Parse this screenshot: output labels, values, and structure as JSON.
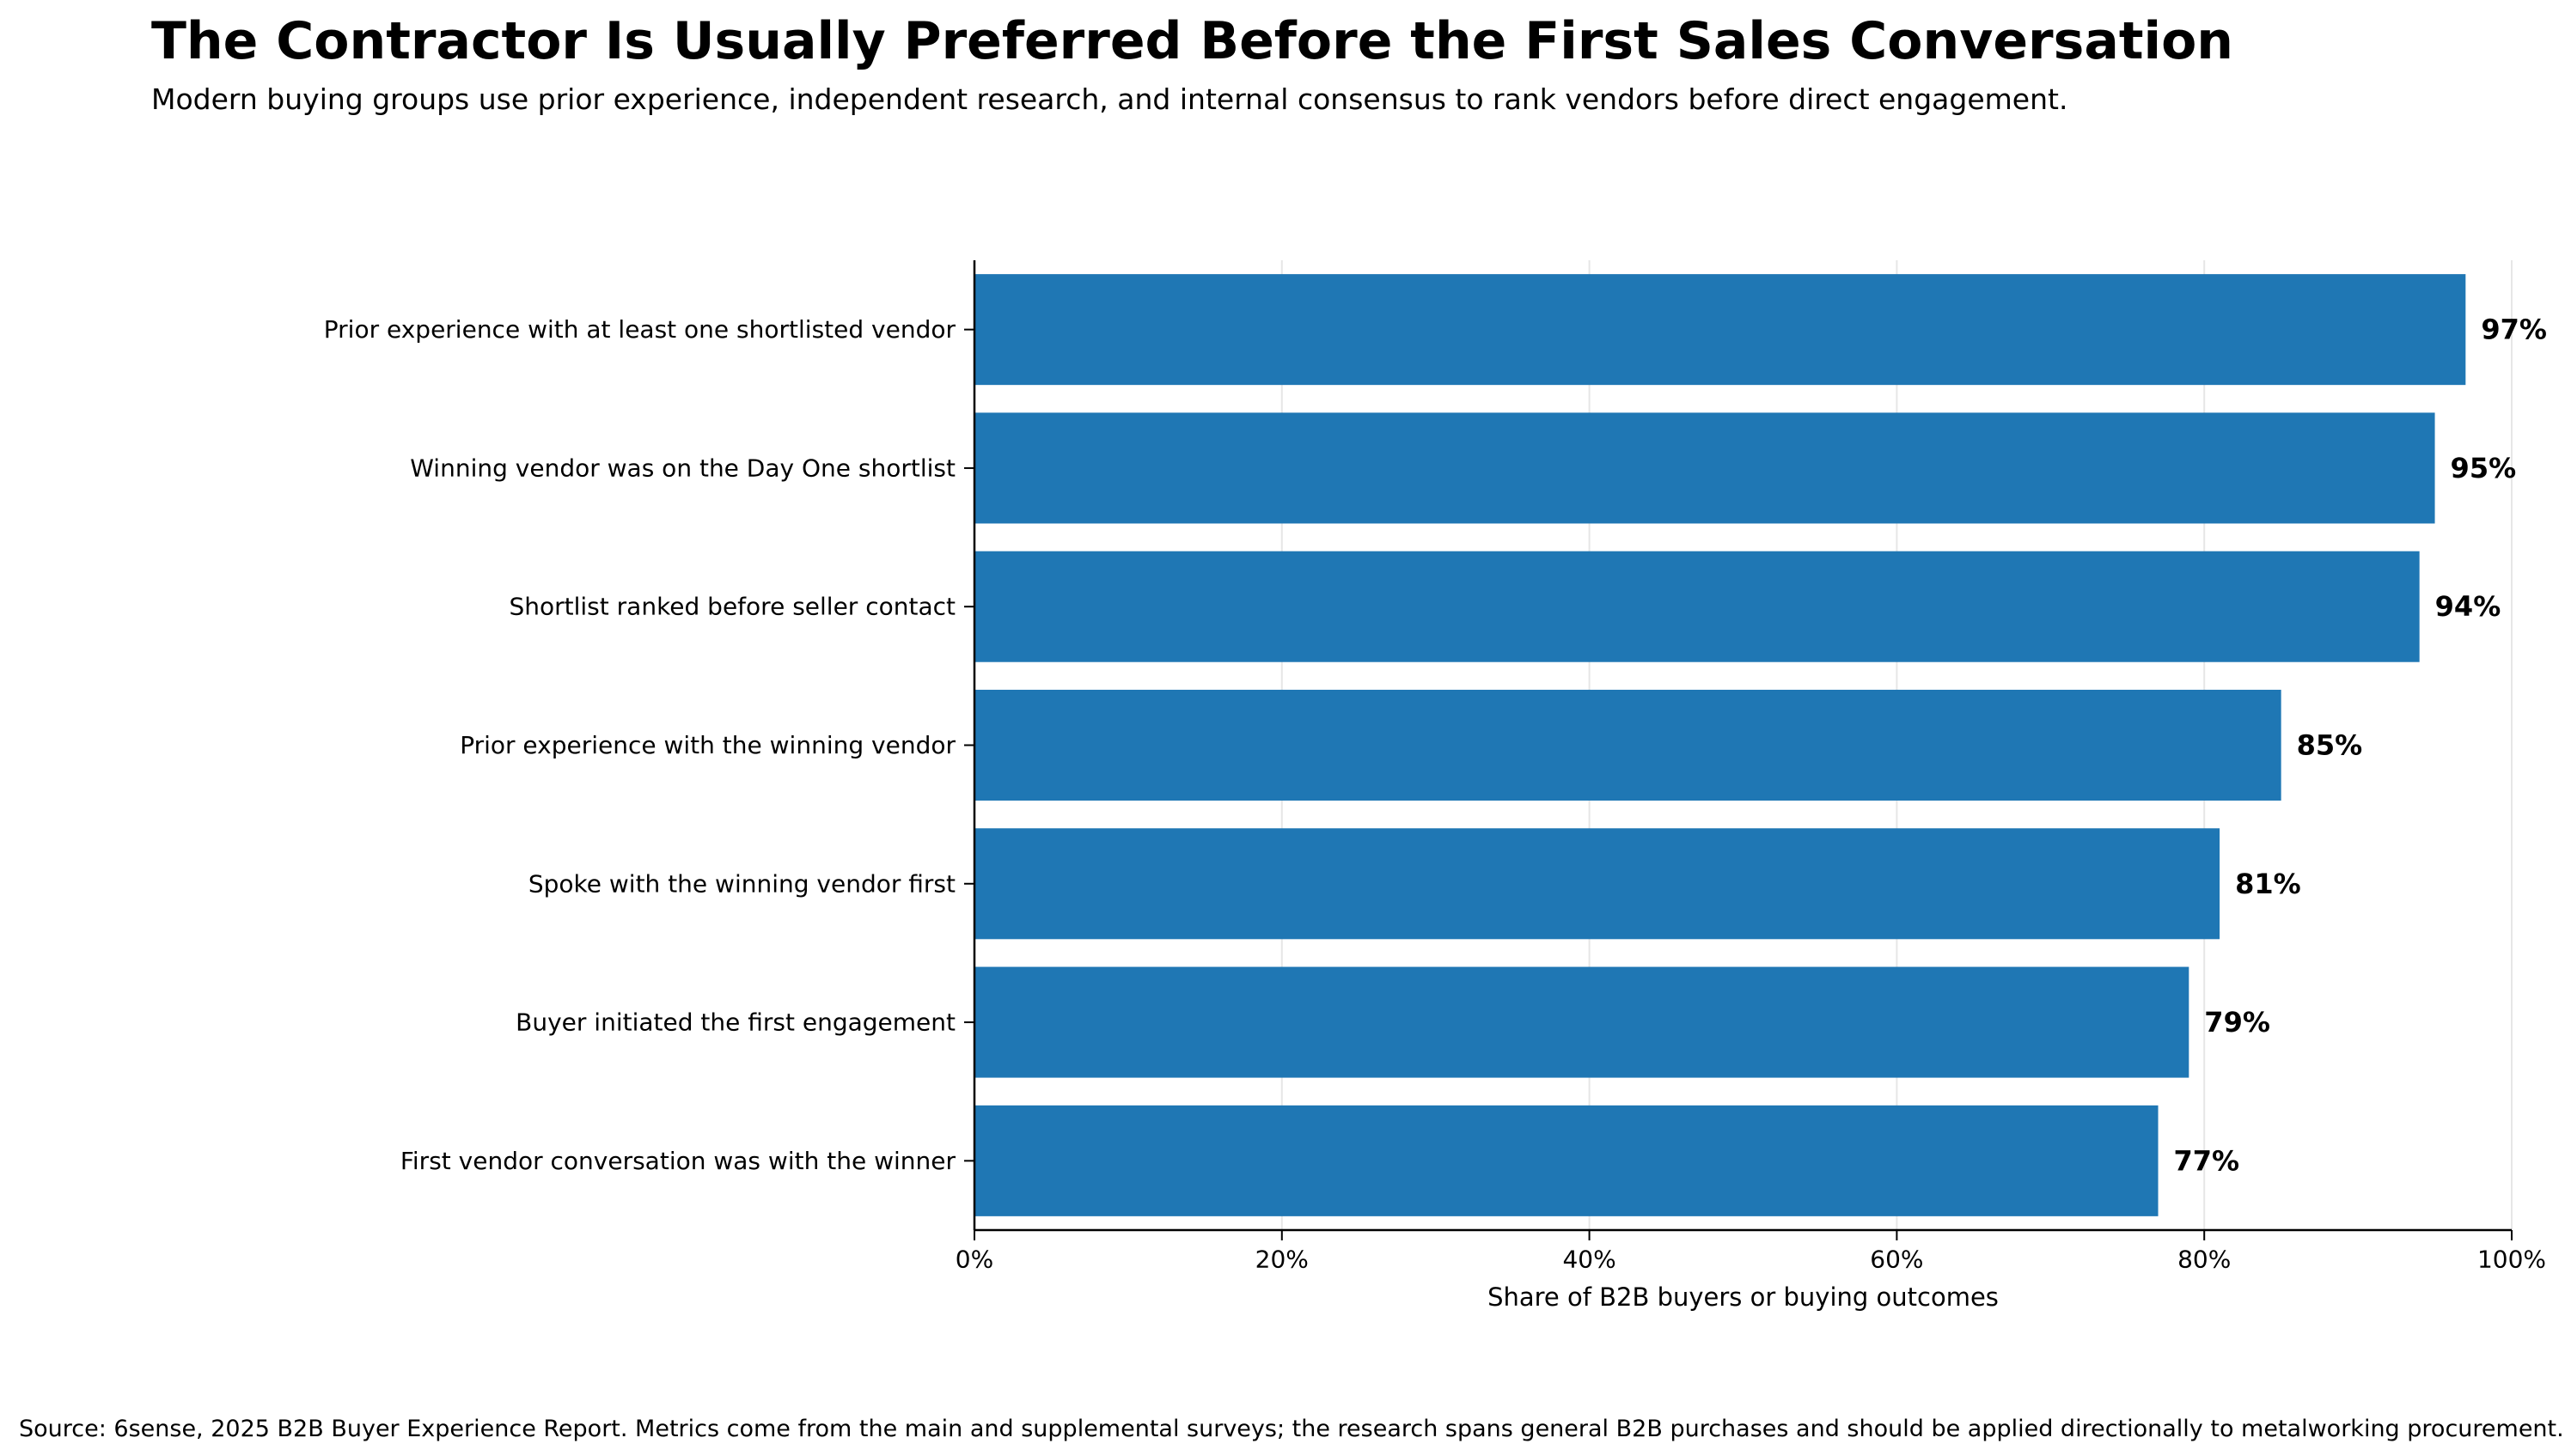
{
  "chart_title": "The Contractor Is Usually Preferred Before the First Sales Conversation",
  "chart_subtitle": "Modern buying groups use prior experience, independent research, and internal consensus to rank vendors before direct engagement.",
  "source_note": "Source: 6sense, 2025 B2B Buyer Experience Report. Metrics come from the main and supplemental surveys; the research spans general B2B purchases and should be applied directionally to metalworking procurement.",
  "colors": {
    "bar": "#1f77b4",
    "text": "#000000",
    "grid": "#e6e6e6"
  },
  "chart_data": {
    "type": "bar",
    "orientation": "horizontal",
    "title": "The Contractor Is Usually Preferred Before the First Sales Conversation",
    "subtitle": "Modern buying groups use prior experience, independent research, and internal consensus to rank vendors before direct engagement.",
    "xlabel": "Share of B2B buyers or buying outcomes",
    "ylabel": "",
    "xlim": [
      0,
      100
    ],
    "x_ticks": [
      0,
      20,
      40,
      60,
      80,
      100
    ],
    "x_tick_labels": [
      "0%",
      "20%",
      "40%",
      "60%",
      "80%",
      "100%"
    ],
    "grid": "vertical",
    "categories": [
      "Prior experience with at least one shortlisted vendor",
      "Winning vendor was on the Day One shortlist",
      "Shortlist ranked before seller contact",
      "Prior experience with the winning vendor",
      "Spoke with the winning vendor first",
      "Buyer initiated the first engagement",
      "First vendor conversation was with the winner"
    ],
    "values": [
      97,
      95,
      94,
      85,
      81,
      79,
      77
    ],
    "value_labels": [
      "97%",
      "95%",
      "94%",
      "85%",
      "81%",
      "79%",
      "77%"
    ]
  }
}
